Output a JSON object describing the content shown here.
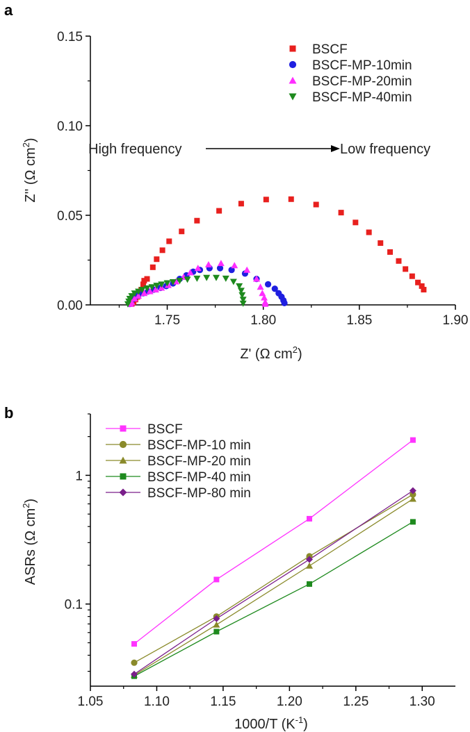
{
  "chart_data": [
    {
      "panel": "a",
      "type": "scatter",
      "xlabel": "Z' (Ω cm²)",
      "ylabel": "Z'' (Ω cm²)",
      "xlim": [
        1.71,
        1.9
      ],
      "ylim": [
        0,
        0.15
      ],
      "x_ticks": [
        "1.75",
        "1.80",
        "1.85",
        "1.90"
      ],
      "y_ticks": [
        "0.00",
        "0.05",
        "0.10",
        "0.15"
      ],
      "legend_position": "top-right",
      "annotations": {
        "left": "High frequency",
        "right": "Low frequency"
      },
      "series": [
        {
          "name": "BSCF",
          "marker": "square",
          "color": "#e8201e",
          "points": [
            [
              1.7315,
              0.0005
            ],
            [
              1.7325,
              0.0015
            ],
            [
              1.7335,
              0.003
            ],
            [
              1.7345,
              0.0045
            ],
            [
              1.7355,
              0.0065
            ],
            [
              1.7365,
              0.0085
            ],
            [
              1.7375,
              0.0115
            ],
            [
              1.738,
              0.0135
            ],
            [
              1.7395,
              0.0145
            ],
            [
              1.7425,
              0.021
            ],
            [
              1.7445,
              0.0255
            ],
            [
              1.7475,
              0.0305
            ],
            [
              1.751,
              0.0355
            ],
            [
              1.7575,
              0.041
            ],
            [
              1.7655,
              0.047
            ],
            [
              1.777,
              0.0525
            ],
            [
              1.7885,
              0.0565
            ],
            [
              1.8015,
              0.0588
            ],
            [
              1.8145,
              0.059
            ],
            [
              1.8275,
              0.056
            ],
            [
              1.8405,
              0.0515
            ],
            [
              1.848,
              0.046
            ],
            [
              1.855,
              0.0405
            ],
            [
              1.861,
              0.0345
            ],
            [
              1.866,
              0.0295
            ],
            [
              1.8705,
              0.0245
            ],
            [
              1.874,
              0.02
            ],
            [
              1.8775,
              0.016
            ],
            [
              1.8805,
              0.0125
            ],
            [
              1.8825,
              0.0105
            ],
            [
              1.8835,
              0.0085
            ]
          ]
        },
        {
          "name": "BSCF-MP-10min",
          "marker": "circle",
          "color": "#1f1fe0",
          "points": [
            [
              1.7305,
              0.0005
            ],
            [
              1.731,
              0.0015
            ],
            [
              1.732,
              0.003
            ],
            [
              1.7335,
              0.0045
            ],
            [
              1.735,
              0.0055
            ],
            [
              1.7375,
              0.0065
            ],
            [
              1.74,
              0.0075
            ],
            [
              1.743,
              0.0085
            ],
            [
              1.7465,
              0.0095
            ],
            [
              1.7495,
              0.0105
            ],
            [
              1.753,
              0.012
            ],
            [
              1.7565,
              0.0145
            ],
            [
              1.76,
              0.0165
            ],
            [
              1.7635,
              0.0185
            ],
            [
              1.767,
              0.0195
            ],
            [
              1.772,
              0.0205
            ],
            [
              1.7775,
              0.0205
            ],
            [
              1.7835,
              0.0195
            ],
            [
              1.7905,
              0.0175
            ],
            [
              1.7965,
              0.0145
            ],
            [
              1.8025,
              0.0115
            ],
            [
              1.806,
              0.009
            ],
            [
              1.808,
              0.0065
            ],
            [
              1.8095,
              0.0045
            ],
            [
              1.8105,
              0.0025
            ],
            [
              1.811,
              0.001
            ]
          ]
        },
        {
          "name": "BSCF-MP-20min",
          "marker": "triangle-up",
          "color": "#ff2dff",
          "points": [
            [
              1.731,
              0.0005
            ],
            [
              1.7315,
              0.0015
            ],
            [
              1.733,
              0.0035
            ],
            [
              1.735,
              0.005
            ],
            [
              1.738,
              0.0065
            ],
            [
              1.741,
              0.0075
            ],
            [
              1.744,
              0.0085
            ],
            [
              1.747,
              0.0095
            ],
            [
              1.7505,
              0.011
            ],
            [
              1.7545,
              0.013
            ],
            [
              1.7585,
              0.0155
            ],
            [
              1.762,
              0.018
            ],
            [
              1.766,
              0.0205
            ],
            [
              1.7715,
              0.0225
            ],
            [
              1.778,
              0.0232
            ],
            [
              1.785,
              0.022
            ],
            [
              1.7915,
              0.0195
            ],
            [
              1.7965,
              0.0145
            ],
            [
              1.7985,
              0.01
            ],
            [
              1.7995,
              0.0065
            ],
            [
              1.8005,
              0.004
            ],
            [
              1.801,
              0.0015
            ],
            [
              1.801,
              0.0005
            ]
          ]
        },
        {
          "name": "BSCF-MP-40min",
          "marker": "triangle-down",
          "color": "#1e8a1e",
          "points": [
            [
              1.7295,
              0.0005
            ],
            [
              1.73,
              0.002
            ],
            [
              1.7305,
              0.0035
            ],
            [
              1.7315,
              0.005
            ],
            [
              1.733,
              0.0065
            ],
            [
              1.735,
              0.0075
            ],
            [
              1.737,
              0.0085
            ],
            [
              1.7395,
              0.0093
            ],
            [
              1.742,
              0.01
            ],
            [
              1.7445,
              0.0108
            ],
            [
              1.747,
              0.0115
            ],
            [
              1.75,
              0.0122
            ],
            [
              1.753,
              0.0128
            ],
            [
              1.7565,
              0.0135
            ],
            [
              1.7605,
              0.0142
            ],
            [
              1.7655,
              0.0148
            ],
            [
              1.7705,
              0.0152
            ],
            [
              1.7755,
              0.0152
            ],
            [
              1.7805,
              0.0148
            ],
            [
              1.7845,
              0.013
            ],
            [
              1.7875,
              0.0105
            ],
            [
              1.7885,
              0.008
            ],
            [
              1.789,
              0.0055
            ],
            [
              1.7895,
              0.003
            ],
            [
              1.7895,
              0.0008
            ]
          ]
        }
      ]
    },
    {
      "panel": "b",
      "type": "line",
      "xlabel": "1000/T (K⁻¹)",
      "ylabel": "ASRs (Ω cm²)",
      "xlim": [
        1.05,
        1.325
      ],
      "ylim": [
        0.023,
        3.0
      ],
      "y_scale": "log",
      "x_ticks": [
        "1.05",
        "1.10",
        "1.15",
        "1.20",
        "1.25",
        "1.30"
      ],
      "y_ticks": [
        "0.1",
        "1"
      ],
      "legend_position": "top-left",
      "x": [
        1.083,
        1.145,
        1.215,
        1.293
      ],
      "series": [
        {
          "name": "BSCF",
          "marker": "square",
          "color": "#ff33ff",
          "values": [
            0.049,
            0.155,
            0.46,
            1.88
          ]
        },
        {
          "name": "BSCF-MP-10 min",
          "marker": "circle",
          "color": "#8a8a2a",
          "values": [
            0.035,
            0.08,
            0.235,
            0.71
          ]
        },
        {
          "name": "BSCF-MP-20 min",
          "marker": "triangle-up",
          "color": "#8a8a2a",
          "values": [
            0.028,
            0.069,
            0.198,
            0.655
          ]
        },
        {
          "name": "BSCF-MP-40 min",
          "marker": "square",
          "color": "#1e8a1e",
          "values": [
            0.0275,
            0.061,
            0.143,
            0.435
          ]
        },
        {
          "name": "BSCF-MP-80 min",
          "marker": "diamond",
          "color": "#7a1e8a",
          "values": [
            0.0285,
            0.077,
            0.222,
            0.76
          ]
        }
      ]
    }
  ],
  "panel_labels": {
    "a": "a",
    "b": "b"
  },
  "axis_labels": {
    "a": {
      "x_main": "Z'",
      "x_unit_open": " (",
      "x_unit_close": ")",
      "y_main": "Z''",
      "y_unit_open": " (",
      "y_unit_close": ")"
    },
    "b": {
      "x_main": "1000/T",
      "x_unit_open": " (K",
      "x_unit_close": ")",
      "y_main": "ASRs",
      "y_unit_open": " (",
      "y_unit_close": ")"
    },
    "omega": "Ω",
    "cm": " cm",
    "sq": "2",
    "neg1": "-1"
  },
  "annotations_a": {
    "left": "High frequency",
    "right": "Low frequency"
  }
}
